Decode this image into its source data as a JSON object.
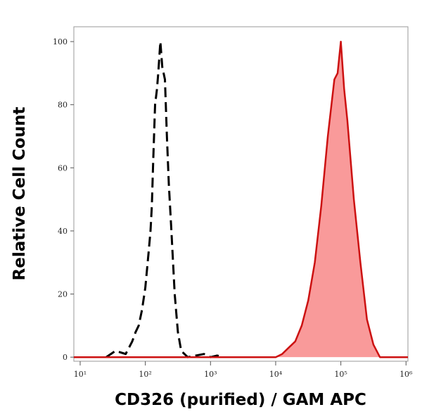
{
  "chart_data": {
    "type": "line",
    "xlabel": "CD326 (purified) / GAM APC",
    "ylabel": "Relative Cell Count",
    "xscale": "log",
    "xlim": [
      8,
      1070000
    ],
    "ylim": [
      -1.3,
      104.7
    ],
    "xticks": [
      {
        "value": 10,
        "label": "10¹"
      },
      {
        "value": 100,
        "label": "10²"
      },
      {
        "value": 1000,
        "label": "10³"
      },
      {
        "value": 10000,
        "label": "10⁴"
      },
      {
        "value": 100000,
        "label": "10⁵"
      },
      {
        "value": 1000000,
        "label": "10⁶"
      }
    ],
    "yticks": [
      0,
      20,
      40,
      60,
      80,
      100
    ],
    "series": [
      {
        "color": "#000000",
        "dash": true,
        "x": [
          25,
          35,
          50,
          63,
          71,
          79,
          89,
          100,
          112,
          120,
          126,
          132,
          141,
          151,
          158,
          170,
          182,
          200,
          214,
          229,
          251,
          282,
          316,
          355,
          447,
          794,
          1000,
          1259,
          1585
        ],
        "values": [
          0,
          2,
          1,
          5,
          8,
          10,
          15,
          22,
          33,
          40,
          48,
          62,
          80,
          85,
          90,
          100,
          92,
          88,
          70,
          55,
          40,
          20,
          8,
          2,
          0,
          1,
          0,
          0.5,
          0
        ]
      },
      {
        "color": "#cc1111",
        "fill": "#f99a9a",
        "dash": false,
        "x": [
          8,
          10000,
          12589,
          15849,
          19953,
          25119,
          31623,
          39811,
          50119,
          63096,
          79433,
          89125,
          100000,
          112202,
          125893,
          158489,
          199526,
          251189,
          316228,
          398107,
          1070000
        ],
        "values": [
          0,
          0,
          1,
          3,
          5,
          10,
          18,
          30,
          48,
          70,
          88,
          90,
          100,
          85,
          75,
          50,
          30,
          12,
          4,
          0,
          0
        ]
      }
    ]
  }
}
